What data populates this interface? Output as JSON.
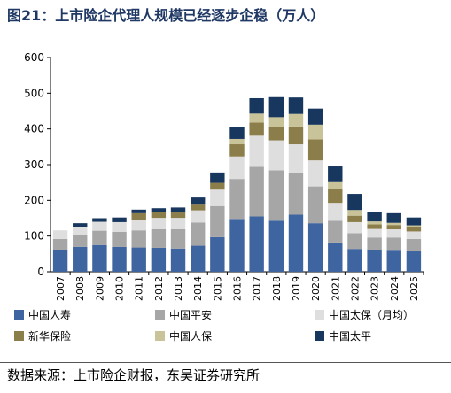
{
  "header": {
    "title": "图21：上市险企代理人规模已经逐步企稳（万人）"
  },
  "footer": {
    "source": "数据来源：上市险企财报，东吴证券研究所"
  },
  "chart_data": {
    "type": "bar",
    "stacked": true,
    "title": "图21：上市险企代理人规模已经逐步企稳（万人）",
    "xlabel": "",
    "ylabel": "",
    "ylim": [
      0,
      600
    ],
    "yticks": [
      0,
      100,
      200,
      300,
      400,
      500,
      600
    ],
    "grid": false,
    "legend_position": "bottom",
    "categories": [
      "2007",
      "2008",
      "2009",
      "2010",
      "2011",
      "2012",
      "2013",
      "2014",
      "2015",
      "2016",
      "2017",
      "2018",
      "2019",
      "2020",
      "2021",
      "2022",
      "2023",
      "2024",
      "2025"
    ],
    "series": [
      {
        "name": "中国人寿",
        "color": "#3e65a0",
        "values": [
          62,
          70,
          75,
          70,
          68,
          67,
          65,
          73,
          97,
          148,
          155,
          143,
          160,
          136,
          82,
          64,
          61,
          59,
          57
        ]
      },
      {
        "name": "中国平安",
        "color": "#a6a6a6",
        "values": [
          30,
          33,
          40,
          42,
          48,
          52,
          54,
          65,
          87,
          112,
          139,
          141,
          117,
          103,
          61,
          44,
          35,
          37,
          35
        ]
      },
      {
        "name": "中国太保（月均）",
        "color": "#dedede",
        "values": [
          24,
          22,
          25,
          27,
          30,
          32,
          32,
          34,
          46,
          63,
          87,
          84,
          80,
          73,
          50,
          31,
          24,
          23,
          21
        ]
      },
      {
        "name": "新华保险",
        "color": "#8c7e4a",
        "values": [
          0,
          0,
          0,
          0,
          18,
          17,
          15,
          16,
          19,
          34,
          37,
          37,
          50,
          59,
          38,
          18,
          13,
          12,
          11
        ]
      },
      {
        "name": "中国人保",
        "color": "#c9c39a",
        "values": [
          0,
          0,
          0,
          0,
          0,
          0,
          0,
          0,
          0,
          15,
          25,
          28,
          35,
          41,
          20,
          16,
          8,
          6,
          6
        ]
      },
      {
        "name": "中国太平",
        "color": "#17375e",
        "values": [
          0,
          11,
          10,
          13,
          10,
          10,
          14,
          20,
          29,
          33,
          43,
          56,
          46,
          45,
          44,
          45,
          26,
          27,
          22
        ]
      }
    ]
  }
}
